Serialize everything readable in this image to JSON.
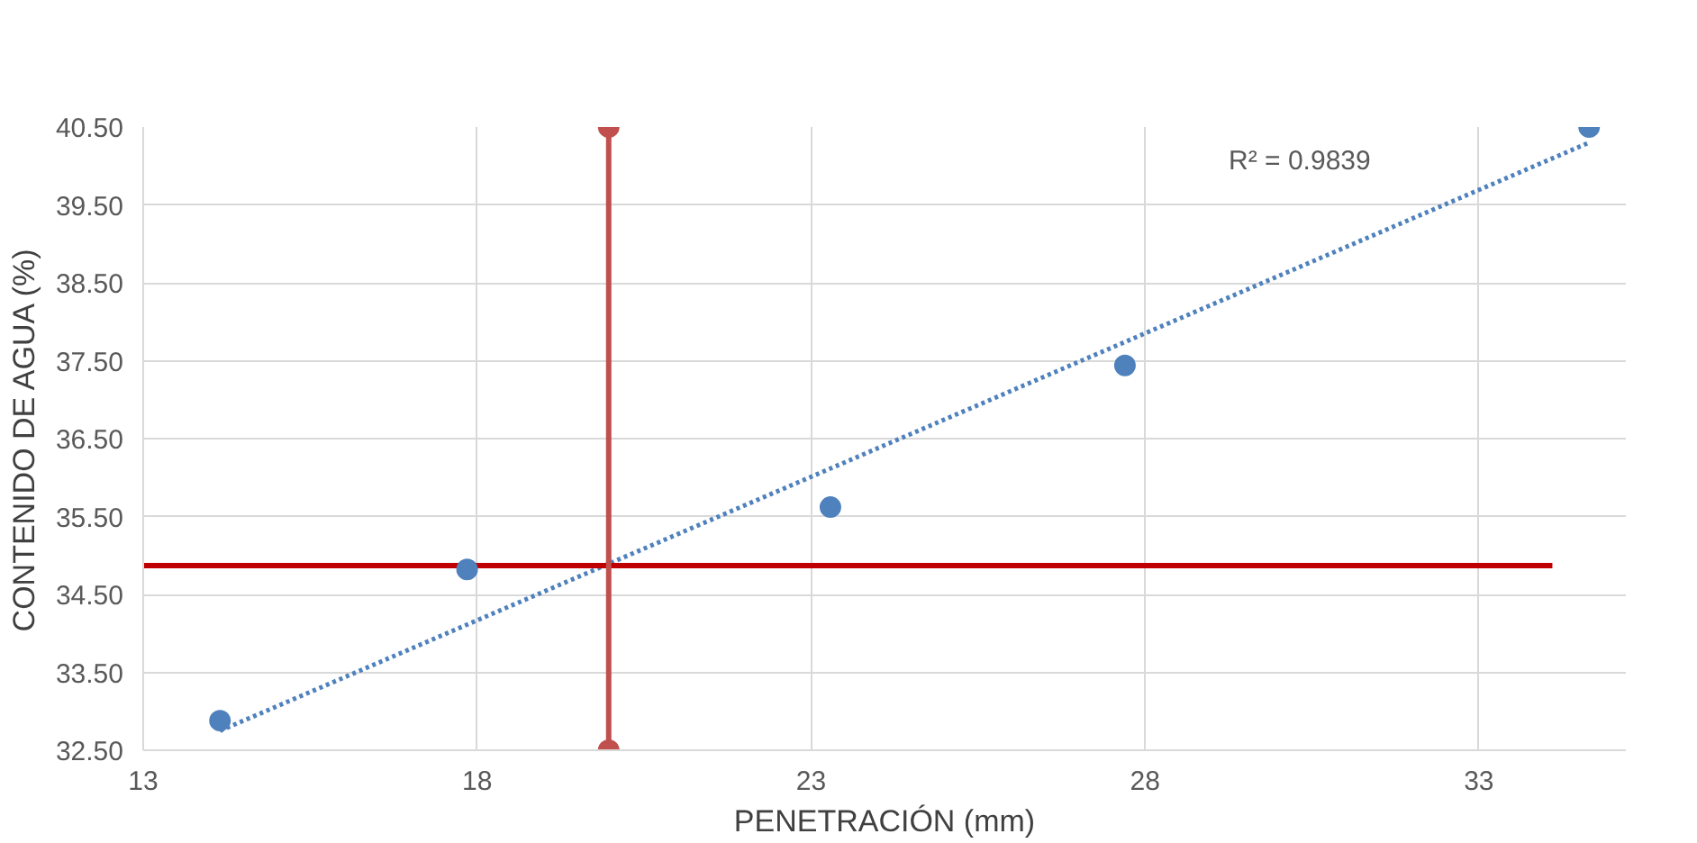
{
  "chart_data": {
    "type": "scatter",
    "xlabel": "PENETRACIÓN (mm)",
    "ylabel": "CONTENIDO DE AGUA (%)",
    "xlim": [
      13,
      35.2
    ],
    "xticks": [
      13,
      18,
      23,
      28,
      33
    ],
    "ylim": [
      32.5,
      40.5
    ],
    "yticks": [
      {
        "value": 32.5,
        "label": "32.50"
      },
      {
        "value": 33.5,
        "label": "33.50"
      },
      {
        "value": 34.5,
        "label": "34.50"
      },
      {
        "value": 35.5,
        "label": "35.50"
      },
      {
        "value": 36.5,
        "label": "36.50"
      },
      {
        "value": 37.5,
        "label": "37.50"
      },
      {
        "value": 38.5,
        "label": "38.50"
      },
      {
        "value": 39.5,
        "label": "39.50"
      },
      {
        "value": 40.5,
        "label": "40.50"
      }
    ],
    "grid": true,
    "annotations": [
      "R² = 0.9839"
    ],
    "series": [
      {
        "type": "line",
        "color": "#4f81bd",
        "x": [
          14.15,
          34.65
        ],
        "values": [
          32.75,
          40.3
        ],
        "line_style": "dotted",
        "marker": "none"
      },
      {
        "type": "line",
        "color": "#c00000",
        "x": [
          13,
          34.1
        ],
        "values": [
          34.87,
          34.87
        ],
        "line_style": "solid",
        "marker": "none"
      },
      {
        "type": "line",
        "color": "#c0504d",
        "x": [
          19.97,
          19.97
        ],
        "values": [
          32.5,
          40.5
        ],
        "line_style": "solid",
        "marker": "circle"
      },
      {
        "color": "#4f81bd",
        "x": [
          14.15,
          17.85,
          23.29,
          27.7,
          34.65
        ],
        "values": [
          32.88,
          34.82,
          35.62,
          37.44,
          40.5
        ],
        "marker": "circle"
      }
    ]
  }
}
